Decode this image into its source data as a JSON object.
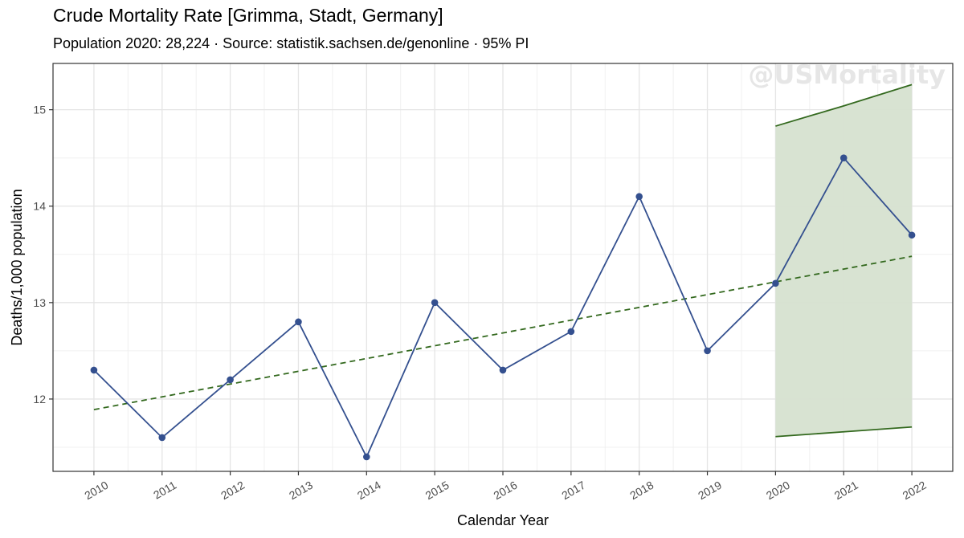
{
  "chart_data": {
    "type": "line",
    "title": "Crude Mortality Rate [Grimma, Stadt, Germany]",
    "subtitle": "Population 2020: 28,224 · Source: statistik.sachsen.de/genonline · 95% PI",
    "xlabel": "Calendar Year",
    "ylabel": "Deaths/1,000 population",
    "watermark": "@USMortality",
    "x": [
      2010,
      2011,
      2012,
      2013,
      2014,
      2015,
      2016,
      2017,
      2018,
      2019,
      2020,
      2021,
      2022
    ],
    "xlim": [
      2009.4,
      2022.6
    ],
    "ylim": [
      11.25,
      15.48
    ],
    "yticks": [
      12,
      13,
      14,
      15
    ],
    "series": [
      {
        "values": [
          12.3,
          11.6,
          12.2,
          12.8,
          11.4,
          13.0,
          12.3,
          12.7,
          14.1,
          12.5,
          13.2,
          14.5,
          13.7
        ],
        "color": "#34508f",
        "style": "line+points"
      }
    ],
    "trend": {
      "x": [
        2010,
        2022
      ],
      "values": [
        11.89,
        13.48
      ],
      "color": "#33691e",
      "style": "dashed"
    },
    "prediction_interval": {
      "x": [
        2020,
        2021,
        2022
      ],
      "lower": [
        11.61,
        11.66,
        11.71
      ],
      "upper": [
        14.83,
        15.04,
        15.26
      ],
      "fill": "#d6e2d0",
      "line_color": "#33691e"
    },
    "grid": true,
    "legend": "none"
  }
}
